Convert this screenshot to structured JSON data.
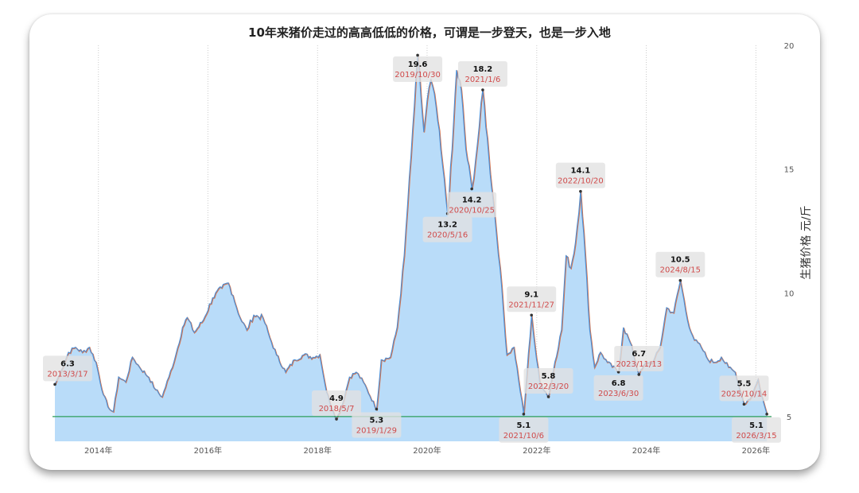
{
  "chart_data": {
    "type": "area",
    "title": "10年来猪价走过的高高低低的价格，可谓是一步登天，也是一步入地",
    "xlabel": "",
    "ylabel": "生猪价格 元/斤",
    "xlim": [
      "2013-03-01",
      "2026-04-15"
    ],
    "ylim": [
      4,
      20
    ],
    "x_ticks": [
      "2014年",
      "2016年",
      "2018年",
      "2020年",
      "2022年",
      "2024年",
      "2026年"
    ],
    "y_ticks": [
      5,
      10,
      15,
      20
    ],
    "y_axis_position": "right",
    "grid": "vertical dotted",
    "fill_color": "#b9dcf9",
    "line_color": "#4a90d9",
    "line_shadow_color": "#d9734a",
    "reference_line": {
      "y": 5,
      "color": "#2e9e5a"
    },
    "series": [
      {
        "values": [
          [
            "2013-03-17",
            6.3
          ],
          [
            "2013-05-01",
            6.9
          ],
          [
            "2013-06-15",
            7.6
          ],
          [
            "2013-08-01",
            7.8
          ],
          [
            "2013-09-15",
            7.6
          ],
          [
            "2013-11-01",
            7.8
          ],
          [
            "2013-12-15",
            7.2
          ],
          [
            "2014-02-01",
            5.9
          ],
          [
            "2014-03-15",
            5.3
          ],
          [
            "2014-04-10",
            5.2
          ],
          [
            "2014-05-15",
            6.6
          ],
          [
            "2014-07-01",
            6.4
          ],
          [
            "2014-08-15",
            7.4
          ],
          [
            "2014-10-01",
            7.0
          ],
          [
            "2014-12-01",
            6.6
          ],
          [
            "2015-01-15",
            6.1
          ],
          [
            "2015-03-01",
            5.8
          ],
          [
            "2015-04-15",
            6.6
          ],
          [
            "2015-06-01",
            7.5
          ],
          [
            "2015-07-15",
            8.6
          ],
          [
            "2015-08-15",
            9.0
          ],
          [
            "2015-10-01",
            8.4
          ],
          [
            "2015-12-01",
            8.9
          ],
          [
            "2016-02-01",
            9.8
          ],
          [
            "2016-04-01",
            10.2
          ],
          [
            "2016-05-15",
            10.4
          ],
          [
            "2016-06-15",
            9.9
          ],
          [
            "2016-08-01",
            9.0
          ],
          [
            "2016-09-15",
            8.5
          ],
          [
            "2016-11-01",
            9.1
          ],
          [
            "2017-01-01",
            9.0
          ],
          [
            "2017-02-15",
            8.2
          ],
          [
            "2017-04-01",
            7.5
          ],
          [
            "2017-06-01",
            6.8
          ],
          [
            "2017-08-01",
            7.3
          ],
          [
            "2017-10-01",
            7.5
          ],
          [
            "2017-12-01",
            7.4
          ],
          [
            "2018-01-15",
            7.5
          ],
          [
            "2018-03-01",
            6.0
          ],
          [
            "2018-04-15",
            5.2
          ],
          [
            "2018-05-07",
            4.9
          ],
          [
            "2018-06-15",
            5.5
          ],
          [
            "2018-08-01",
            6.6
          ],
          [
            "2018-09-15",
            6.8
          ],
          [
            "2018-11-01",
            6.4
          ],
          [
            "2019-01-29",
            5.3
          ],
          [
            "2019-03-01",
            7.3
          ],
          [
            "2019-05-01",
            7.4
          ],
          [
            "2019-06-15",
            8.6
          ],
          [
            "2019-08-01",
            11.5
          ],
          [
            "2019-09-15",
            15.5
          ],
          [
            "2019-10-30",
            19.6
          ],
          [
            "2019-11-20",
            18.0
          ],
          [
            "2019-12-10",
            16.5
          ],
          [
            "2020-01-01",
            17.8
          ],
          [
            "2020-01-25",
            18.6
          ],
          [
            "2020-03-01",
            17.5
          ],
          [
            "2020-04-01",
            15.8
          ],
          [
            "2020-05-16",
            13.2
          ],
          [
            "2020-06-15",
            15.8
          ],
          [
            "2020-07-15",
            19.0
          ],
          [
            "2020-08-15",
            18.2
          ],
          [
            "2020-09-15",
            15.8
          ],
          [
            "2020-10-25",
            14.2
          ],
          [
            "2020-12-01",
            16.0
          ],
          [
            "2021-01-06",
            18.2
          ],
          [
            "2021-02-15",
            15.5
          ],
          [
            "2021-03-15",
            13.8
          ],
          [
            "2021-05-01",
            11.0
          ],
          [
            "2021-06-15",
            7.5
          ],
          [
            "2021-08-01",
            7.8
          ],
          [
            "2021-09-01",
            6.5
          ],
          [
            "2021-10-06",
            5.1
          ],
          [
            "2021-11-27",
            9.1
          ],
          [
            "2021-12-20",
            7.8
          ],
          [
            "2022-01-20",
            6.4
          ],
          [
            "2022-03-20",
            5.8
          ],
          [
            "2022-05-01",
            7.2
          ],
          [
            "2022-06-15",
            8.5
          ],
          [
            "2022-07-15",
            11.5
          ],
          [
            "2022-08-15",
            11.0
          ],
          [
            "2022-09-15",
            12.0
          ],
          [
            "2022-10-20",
            14.1
          ],
          [
            "2022-11-20",
            11.5
          ],
          [
            "2022-12-20",
            8.5
          ],
          [
            "2023-01-20",
            7.0
          ],
          [
            "2023-03-01",
            7.6
          ],
          [
            "2023-04-15",
            7.2
          ],
          [
            "2023-06-30",
            6.8
          ],
          [
            "2023-08-01",
            8.6
          ],
          [
            "2023-09-15",
            8.0
          ],
          [
            "2023-11-13",
            6.7
          ],
          [
            "2024-01-01",
            7.2
          ],
          [
            "2024-02-15",
            7.2
          ],
          [
            "2024-04-01",
            7.8
          ],
          [
            "2024-05-15",
            9.4
          ],
          [
            "2024-07-01",
            9.2
          ],
          [
            "2024-08-15",
            10.5
          ],
          [
            "2024-10-01",
            8.9
          ],
          [
            "2024-11-15",
            8.1
          ],
          [
            "2025-01-01",
            7.8
          ],
          [
            "2025-02-15",
            7.3
          ],
          [
            "2025-04-01",
            7.2
          ],
          [
            "2025-05-15",
            7.4
          ],
          [
            "2025-07-01",
            7.0
          ],
          [
            "2025-08-15",
            6.8
          ],
          [
            "2025-10-14",
            5.5
          ],
          [
            "2025-12-01",
            5.8
          ],
          [
            "2026-01-15",
            6.5
          ],
          [
            "2026-02-15",
            5.7
          ],
          [
            "2026-03-15",
            5.1
          ]
        ]
      }
    ],
    "annotations": [
      {
        "value": "6.3",
        "date": "2013/3/17",
        "x": "2013-03-17",
        "y": 6.3,
        "box_side": "above"
      },
      {
        "value": "4.9",
        "date": "2018/5/7",
        "x": "2018-05-07",
        "y": 4.9,
        "box_side": "above"
      },
      {
        "value": "5.3",
        "date": "2019/1/29",
        "x": "2019-01-29",
        "y": 5.3,
        "box_side": "below"
      },
      {
        "value": "19.6",
        "date": "2019/10/30",
        "x": "2019-10-30",
        "y": 19.6,
        "box_side": "above"
      },
      {
        "value": "13.2",
        "date": "2020/5/16",
        "x": "2020-05-16",
        "y": 13.2,
        "box_side": "below"
      },
      {
        "value": "14.2",
        "date": "2020/10/25",
        "x": "2020-10-25",
        "y": 14.2,
        "box_side": "below"
      },
      {
        "value": "18.2",
        "date": "2021/1/6",
        "x": "2021-01-06",
        "y": 18.2,
        "box_side": "above"
      },
      {
        "value": "5.1",
        "date": "2021/10/6",
        "x": "2021-10-06",
        "y": 5.1,
        "box_side": "below"
      },
      {
        "value": "9.1",
        "date": "2021/11/27",
        "x": "2021-11-27",
        "y": 9.1,
        "box_side": "above"
      },
      {
        "value": "5.8",
        "date": "2022/3/20",
        "x": "2022-03-20",
        "y": 5.8,
        "box_side": "above"
      },
      {
        "value": "14.1",
        "date": "2022/10/20",
        "x": "2022-10-20",
        "y": 14.1,
        "box_side": "above"
      },
      {
        "value": "6.8",
        "date": "2023/6/30",
        "x": "2023-06-30",
        "y": 6.8,
        "box_side": "below"
      },
      {
        "value": "6.7",
        "date": "2023/11/13",
        "x": "2023-11-13",
        "y": 6.7,
        "box_side": "above"
      },
      {
        "value": "10.5",
        "date": "2024/8/15",
        "x": "2024-08-15",
        "y": 10.5,
        "box_side": "above"
      },
      {
        "value": "5.5",
        "date": "2025/10/14",
        "x": "2025-10-14",
        "y": 5.5,
        "box_side": "above"
      },
      {
        "value": "5.1",
        "date": "2026/3/15",
        "x": "2026-03-15",
        "y": 5.1,
        "box_side": "below"
      }
    ]
  }
}
